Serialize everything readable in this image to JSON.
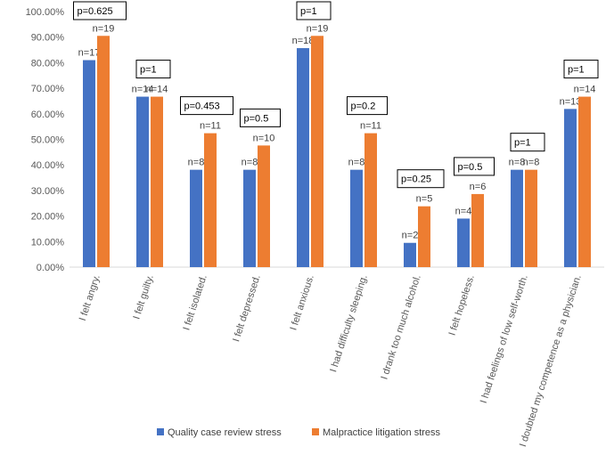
{
  "chart_data": {
    "type": "bar",
    "title": "",
    "xlabel": "",
    "ylabel": "",
    "ylim": [
      0,
      1
    ],
    "yticks": [
      "0.00%",
      "10.00%",
      "20.00%",
      "30.00%",
      "40.00%",
      "50.00%",
      "60.00%",
      "70.00%",
      "80.00%",
      "90.00%",
      "100.00%"
    ],
    "categories": [
      "I felt angry.",
      "I felt guilty.",
      "I felt isolated.",
      "I felt depressed.",
      "I felt anxious.",
      "I had difficulty sleeping.",
      "I drank too much alcohol.",
      "I felt hopeless.",
      "I had feelings of low self-worth.",
      "I doubted my competence as a physician."
    ],
    "series": [
      {
        "name": "Quality case review stress",
        "color": "#4472C4",
        "values": [
          0.81,
          0.667,
          0.381,
          0.381,
          0.857,
          0.381,
          0.095,
          0.19,
          0.381,
          0.619
        ],
        "labels": [
          "n=17",
          "n=14",
          "n=8",
          "n=8",
          "n=18",
          "n=8",
          "n=2",
          "n=4",
          "n=8",
          "n=13"
        ]
      },
      {
        "name": "Malpractice litigation stress",
        "color": "#ED7D31",
        "values": [
          0.905,
          0.667,
          0.524,
          0.476,
          0.905,
          0.524,
          0.238,
          0.286,
          0.381,
          0.667
        ],
        "labels": [
          "n=19",
          "n=14",
          "n=11",
          "n=10",
          "n=19",
          "n=11",
          "n=5",
          "n=6",
          "n=8",
          "n=14"
        ]
      }
    ],
    "annotations": [
      "p=0.625",
      "p=1",
      "p=0.453",
      "p=0.5",
      "p=1",
      "p=0.2",
      "p=0.25",
      "p=0.5",
      "p=1",
      "p=1"
    ],
    "legend_position": "bottom",
    "grid": false
  }
}
